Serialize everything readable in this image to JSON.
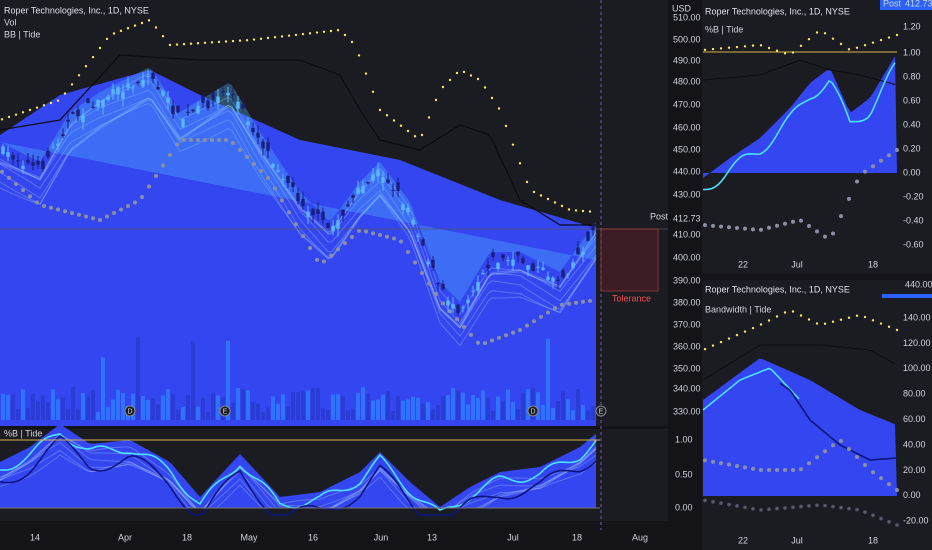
{
  "main": {
    "title": "Roper Technologies, Inc., 1D, NYSE",
    "vol_label": "Vol",
    "indicator_label": "BB | Tide",
    "currency": "USD",
    "price_ticks": [
      "510.00",
      "500.00",
      "490.00",
      "480.00",
      "470.00",
      "460.00",
      "450.00",
      "440.00",
      "430.00",
      "410.00",
      "400.00",
      "390.00",
      "380.00",
      "370.00",
      "360.00",
      "350.00",
      "340.00",
      "330.00"
    ],
    "post_label": "Post",
    "last_price": "412.73",
    "tolerance_label": "Tolerance",
    "event_badges": [
      "D",
      "E",
      "D",
      "E"
    ],
    "sub_label": "%B | Tide",
    "sub_ticks": [
      "1.00",
      "0.50",
      "0.00"
    ],
    "time_labels": [
      "14",
      "Apr",
      "18",
      "May",
      "16",
      "Jun",
      "13",
      "Jul",
      "18",
      "Aug"
    ]
  },
  "top_right": {
    "title": "Roper Technologies, Inc., 1D, NYSE",
    "badge_label": "Post",
    "badge_value": "412.73",
    "indicator_label": "%B | Tide",
    "ticks": [
      "1.20",
      "1.00",
      "0.80",
      "0.60",
      "0.40",
      "0.20",
      "0.00",
      "-0.20",
      "-0.40",
      "-0.60"
    ],
    "time_labels": [
      "22",
      "Jul",
      "18"
    ]
  },
  "bottom_right": {
    "title": "Roper Technologies, Inc., 1D, NYSE",
    "badge_value": "440.00",
    "indicator_label": "Bandwidth | Tide",
    "ticks": [
      "140.00",
      "120.00",
      "100.00",
      "80.00",
      "60.00",
      "40.00",
      "20.00",
      "0.00",
      "-20.00"
    ],
    "time_labels": [
      "22",
      "Jul",
      "18"
    ]
  }
}
